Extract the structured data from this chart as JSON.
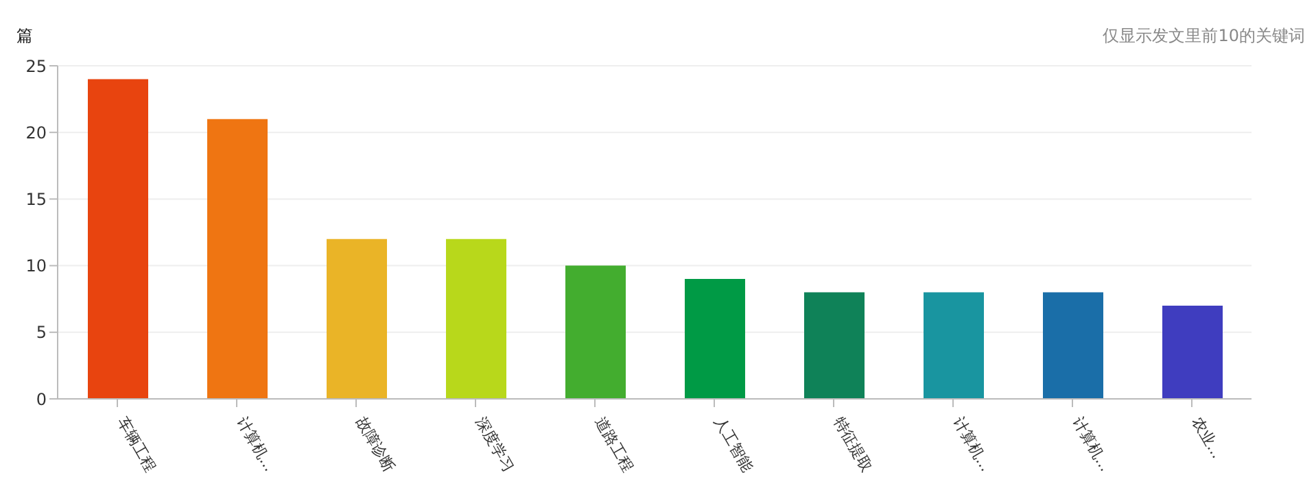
{
  "chart_data": {
    "type": "bar",
    "ylabel": "篇",
    "annotations": [
      "仅显示发文里前10的关键词"
    ],
    "categories": [
      "车辆工程",
      "计算机...",
      "故障诊断",
      "深度学习",
      "道路工程",
      "人工智能",
      "特征提取",
      "计算机...",
      "计算机...",
      "农业..."
    ],
    "values": [
      24,
      21,
      12,
      12,
      10,
      9,
      8,
      8,
      8,
      7
    ],
    "colors": [
      "#e8440f",
      "#ef7512",
      "#eab427",
      "#b8d81b",
      "#43ad2f",
      "#009a45",
      "#0f8258",
      "#1995a0",
      "#1a6ea8",
      "#3f3dbf"
    ],
    "ylim": [
      0,
      25
    ],
    "yticks": [
      0,
      5,
      10,
      15,
      20,
      25
    ],
    "grid": "y"
  }
}
